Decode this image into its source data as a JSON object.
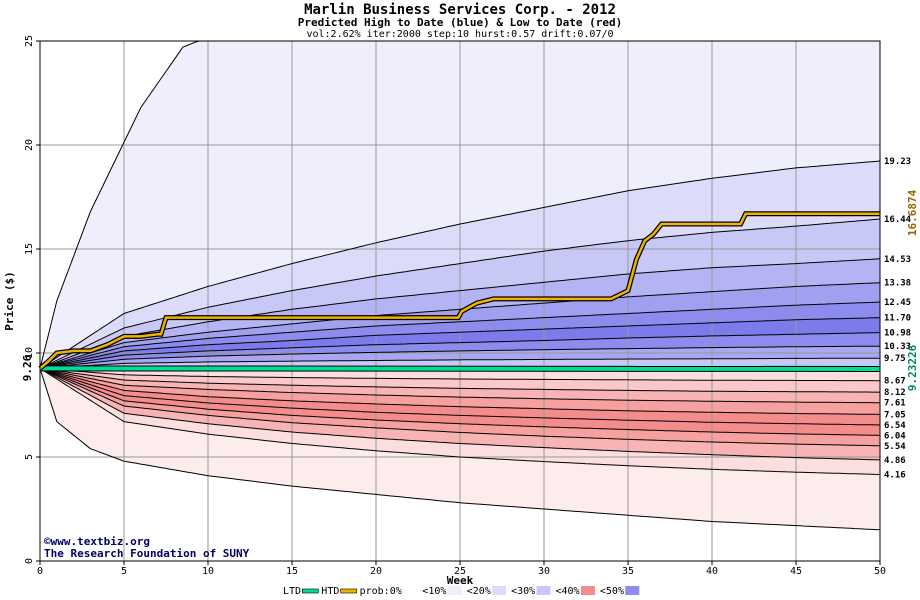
{
  "chart_data": {
    "type": "area",
    "title": "Marlin Business Services Corp. - 2012",
    "subtitle": "Predicted High to Date (blue) &  Low to Date (red)",
    "params": "vol:2.62% iter:2000 step:10 hurst:0.57 drift:0.07/0",
    "xlabel": "Week",
    "ylabel": "Price ($)",
    "xlim": [
      0,
      50
    ],
    "ylim": [
      0,
      25
    ],
    "x_ticks": [
      0,
      5,
      10,
      15,
      20,
      25,
      30,
      35,
      40,
      45,
      50
    ],
    "y_ticks": [
      0,
      5,
      10,
      15,
      20,
      25
    ],
    "grid": true,
    "start_price": "9.26",
    "htd_value": "16.6874",
    "ltd_value": "9.23226",
    "right_labels": [
      "19.23",
      "16.44",
      "14.53",
      "13.38",
      "12.45",
      "11.70",
      "10.98",
      "10.33",
      "9.75",
      "8.67",
      "8.12",
      "7.61",
      "7.05",
      "6.54",
      "6.04",
      "5.54",
      "4.86",
      "4.16"
    ],
    "high_bands": [
      {
        "x": [
          0,
          1,
          3,
          6,
          8.5,
          10
        ],
        "y": [
          9.26,
          12.5,
          16.8,
          21.8,
          24.7,
          25.2
        ]
      },
      {
        "x": [
          0,
          5,
          10,
          15,
          20,
          25,
          30,
          35,
          40,
          45,
          50
        ],
        "y": [
          9.26,
          11.9,
          13.2,
          14.3,
          15.3,
          16.2,
          17.0,
          17.8,
          18.4,
          18.9,
          19.23
        ]
      },
      {
        "x": [
          0,
          5,
          10,
          15,
          20,
          25,
          30,
          35,
          40,
          45,
          50
        ],
        "y": [
          9.26,
          11.2,
          12.2,
          13.0,
          13.7,
          14.3,
          14.9,
          15.4,
          15.8,
          16.1,
          16.44
        ]
      },
      {
        "x": [
          0,
          5,
          10,
          15,
          20,
          25,
          30,
          35,
          40,
          45,
          50
        ],
        "y": [
          9.26,
          10.8,
          11.5,
          12.1,
          12.6,
          13.0,
          13.4,
          13.8,
          14.1,
          14.3,
          14.53
        ]
      },
      {
        "x": [
          0,
          5,
          10,
          15,
          20,
          25,
          30,
          35,
          40,
          45,
          50
        ],
        "y": [
          9.26,
          10.5,
          11.0,
          11.4,
          11.8,
          12.1,
          12.4,
          12.7,
          12.95,
          13.2,
          13.38
        ]
      },
      {
        "x": [
          0,
          5,
          10,
          15,
          20,
          25,
          30,
          35,
          40,
          45,
          50
        ],
        "y": [
          9.26,
          10.3,
          10.7,
          11.0,
          11.3,
          11.5,
          11.7,
          11.9,
          12.1,
          12.3,
          12.45
        ]
      },
      {
        "x": [
          0,
          5,
          10,
          15,
          20,
          25,
          30,
          35,
          40,
          45,
          50
        ],
        "y": [
          9.26,
          10.1,
          10.4,
          10.6,
          10.85,
          11.0,
          11.15,
          11.3,
          11.45,
          11.6,
          11.7
        ]
      },
      {
        "x": [
          0,
          5,
          10,
          15,
          20,
          25,
          30,
          35,
          40,
          45,
          50
        ],
        "y": [
          9.26,
          9.9,
          10.1,
          10.25,
          10.4,
          10.5,
          10.6,
          10.72,
          10.82,
          10.9,
          10.98
        ]
      },
      {
        "x": [
          0,
          5,
          10,
          15,
          20,
          25,
          30,
          35,
          40,
          45,
          50
        ],
        "y": [
          9.26,
          9.7,
          9.85,
          9.95,
          10.03,
          10.1,
          10.16,
          10.21,
          10.26,
          10.3,
          10.33
        ]
      },
      {
        "x": [
          0,
          5,
          10,
          15,
          20,
          25,
          30,
          35,
          40,
          45,
          50
        ],
        "y": [
          9.26,
          9.5,
          9.57,
          9.61,
          9.64,
          9.67,
          9.69,
          9.71,
          9.72,
          9.74,
          9.75
        ]
      }
    ],
    "low_bands": [
      {
        "x": [
          0,
          5,
          10,
          15,
          20,
          25,
          30,
          35,
          40,
          45,
          50
        ],
        "y": [
          9.26,
          8.95,
          8.87,
          8.82,
          8.78,
          8.75,
          8.73,
          8.71,
          8.69,
          8.68,
          8.67
        ]
      },
      {
        "x": [
          0,
          5,
          10,
          15,
          20,
          25,
          30,
          35,
          40,
          45,
          50
        ],
        "y": [
          9.26,
          8.7,
          8.55,
          8.45,
          8.37,
          8.3,
          8.25,
          8.2,
          8.16,
          8.14,
          8.12
        ]
      },
      {
        "x": [
          0,
          5,
          10,
          15,
          20,
          25,
          30,
          35,
          40,
          45,
          50
        ],
        "y": [
          9.26,
          8.45,
          8.25,
          8.1,
          7.98,
          7.88,
          7.8,
          7.73,
          7.68,
          7.64,
          7.61
        ]
      },
      {
        "x": [
          0,
          5,
          10,
          15,
          20,
          25,
          30,
          35,
          40,
          45,
          50
        ],
        "y": [
          9.26,
          8.2,
          7.9,
          7.7,
          7.55,
          7.42,
          7.32,
          7.22,
          7.15,
          7.09,
          7.05
        ]
      },
      {
        "x": [
          0,
          5,
          10,
          15,
          20,
          25,
          30,
          35,
          40,
          45,
          50
        ],
        "y": [
          9.26,
          7.95,
          7.6,
          7.35,
          7.15,
          7.0,
          6.88,
          6.77,
          6.67,
          6.6,
          6.54
        ]
      },
      {
        "x": [
          0,
          5,
          10,
          15,
          20,
          25,
          30,
          35,
          40,
          45,
          50
        ],
        "y": [
          9.26,
          7.7,
          7.3,
          7.0,
          6.78,
          6.6,
          6.45,
          6.32,
          6.2,
          6.11,
          6.04
        ]
      },
      {
        "x": [
          0,
          5,
          10,
          15,
          20,
          25,
          30,
          35,
          40,
          45,
          50
        ],
        "y": [
          9.26,
          7.45,
          7.0,
          6.65,
          6.4,
          6.18,
          6.0,
          5.85,
          5.72,
          5.62,
          5.54
        ]
      },
      {
        "x": [
          0,
          5,
          10,
          15,
          20,
          25,
          30,
          35,
          40,
          45,
          50
        ],
        "y": [
          9.26,
          7.1,
          6.6,
          6.2,
          5.9,
          5.65,
          5.45,
          5.27,
          5.11,
          4.97,
          4.86
        ]
      },
      {
        "x": [
          0,
          5,
          10,
          15,
          20,
          25,
          30,
          35,
          40,
          45,
          50
        ],
        "y": [
          9.26,
          6.7,
          6.1,
          5.65,
          5.3,
          5.0,
          4.78,
          4.58,
          4.41,
          4.27,
          4.16
        ]
      },
      {
        "x": [
          0,
          1,
          3,
          5,
          10,
          15,
          20,
          25,
          30,
          35,
          40,
          45,
          50
        ],
        "y": [
          9.26,
          6.7,
          5.4,
          4.8,
          4.1,
          3.6,
          3.2,
          2.8,
          2.5,
          2.2,
          1.9,
          1.7,
          1.5
        ]
      }
    ],
    "htd_path": {
      "x": [
        0,
        0.5,
        1,
        2,
        3,
        4,
        5,
        6,
        7,
        7.2,
        7.5,
        10,
        15,
        20,
        24.9,
        25.1,
        26,
        27,
        30,
        34,
        35,
        35.5,
        36,
        36.5,
        37,
        37.5,
        40,
        41.7,
        42,
        45,
        50
      ],
      "y": [
        9.26,
        9.6,
        10.0,
        10.1,
        10.1,
        10.4,
        10.8,
        10.8,
        10.9,
        10.9,
        11.7,
        11.7,
        11.7,
        11.7,
        11.7,
        12.0,
        12.4,
        12.6,
        12.6,
        12.6,
        13.0,
        14.5,
        15.4,
        15.7,
        16.2,
        16.2,
        16.2,
        16.2,
        16.69,
        16.69,
        16.69
      ]
    },
    "ltd_path": {
      "x": [
        0,
        50
      ],
      "y": [
        9.26,
        9.23
      ]
    },
    "colors": {
      "high_bands": [
        "#eeeefc",
        "#dcdcfa",
        "#c8c8f7",
        "#b4b4f4",
        "#a0a0f1",
        "#8c8cee",
        "#7b7bec",
        "#8c8cee",
        "#a8a8f2",
        "#c8c8f7"
      ],
      "low_bands": [
        "#fcdede",
        "#fac8c8",
        "#f8b4b4",
        "#f6a0a0",
        "#f48c8c",
        "#f48c8c",
        "#f6a0a0",
        "#f8b4b4",
        "#fcdede",
        "#fdecec"
      ],
      "htd": "#f0b400",
      "ltd": "#00dd99",
      "htd_label": "#996600",
      "ltd_label": "#008866",
      "credit": "#000066"
    },
    "legend": {
      "position": "bottom",
      "items": [
        {
          "label": "LTD",
          "color": "#00dd99",
          "kind": "line"
        },
        {
          "label": "HTD",
          "color": "#f0b400",
          "kind": "line"
        },
        {
          "label": "prob:0%",
          "color": "#ffffff",
          "kind": "swatch"
        },
        {
          "label": "<10%",
          "color": "#eeeefc",
          "kind": "swatch"
        },
        {
          "label": "<20%",
          "color": "#dcdcfa",
          "kind": "swatch"
        },
        {
          "label": "<30%",
          "color": "#c8c8f7",
          "kind": "swatch"
        },
        {
          "label": "<40%",
          "color": "#f48c8c",
          "kind": "swatch"
        },
        {
          "label": "<50%",
          "color": "#8c8cee",
          "kind": "swatch"
        }
      ]
    },
    "credits": [
      "©www.textbiz.org",
      "The Research Foundation of SUNY"
    ]
  }
}
